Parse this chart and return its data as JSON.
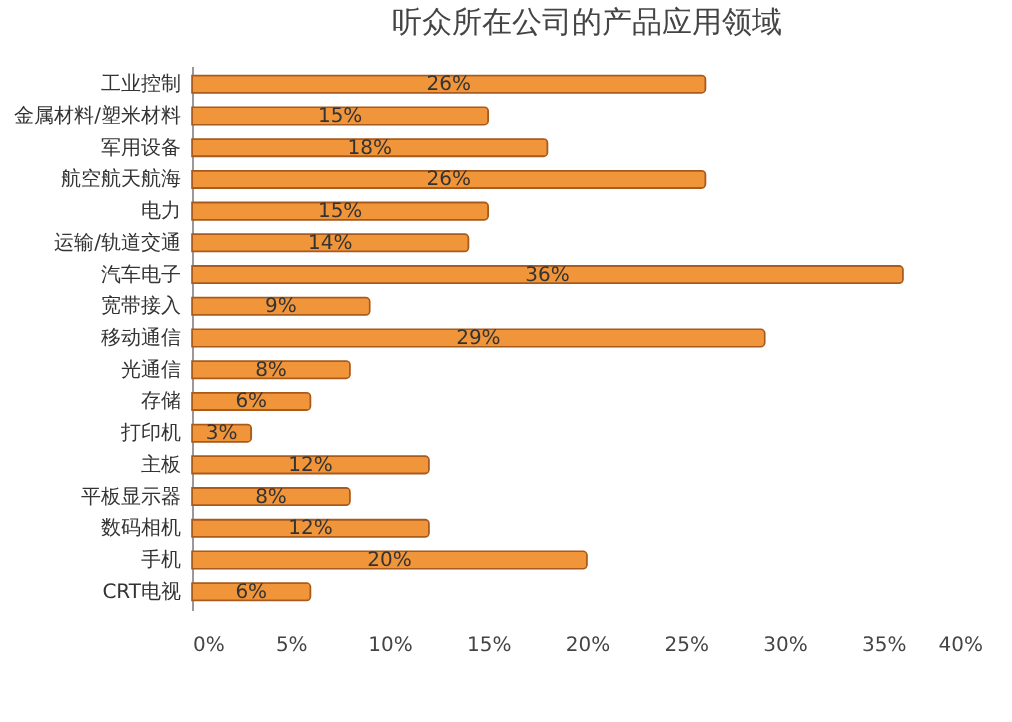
{
  "chart_data": {
    "type": "bar",
    "orientation": "horizontal",
    "title": "听众所在公司的产品应用领域",
    "categories": [
      "工业控制",
      "金属材料/塑米材料",
      "军用设备",
      "航空航天航海",
      "电力",
      "运输/轨道交通",
      "汽车电子",
      "宽带接入",
      "移动通信",
      "光通信",
      "存储",
      "打印机",
      "主板",
      "平板显示器",
      "数码相机",
      "手机",
      "CRT电视"
    ],
    "values": [
      26,
      15,
      18,
      26,
      15,
      14,
      36,
      9,
      29,
      8,
      6,
      3,
      12,
      8,
      12,
      20,
      6
    ],
    "value_labels": [
      "26%",
      "15%",
      "18%",
      "26%",
      "15%",
      "14%",
      "36%",
      "9%",
      "29%",
      "8%",
      "6%",
      "3%",
      "12%",
      "8%",
      "12%",
      "20%",
      "6%"
    ],
    "color": "#f0953a",
    "xlim": [
      0,
      40
    ],
    "xticks": [
      {
        "value": 0,
        "label": "0%"
      },
      {
        "value": 5,
        "label": "5%"
      },
      {
        "value": 10,
        "label": "10%"
      },
      {
        "value": 15,
        "label": "15%"
      },
      {
        "value": 20,
        "label": "20%"
      },
      {
        "value": 25,
        "label": "25%"
      },
      {
        "value": 30,
        "label": "30%"
      },
      {
        "value": 35,
        "label": "35%"
      },
      {
        "value": 40,
        "label": "40%"
      }
    ],
    "grid": false
  }
}
